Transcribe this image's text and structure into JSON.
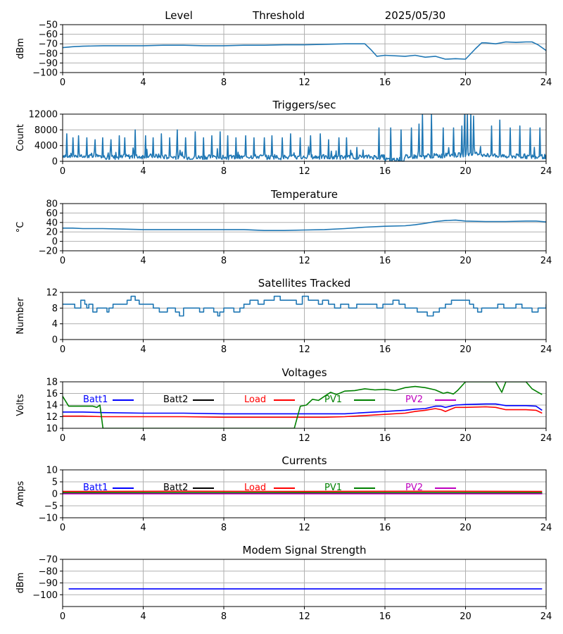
{
  "header": {
    "level": "Level",
    "threshold": "Threshold",
    "date": "2025/05/30"
  },
  "chart_data": [
    {
      "type": "line",
      "title": "",
      "ylabel": "dBm",
      "xlim": [
        0,
        24
      ],
      "ylim": [
        -100,
        -50
      ],
      "xticks": [
        "0",
        "4",
        "8",
        "12",
        "16",
        "20",
        "24"
      ],
      "yticks": [
        "-100",
        "-90",
        "-80",
        "-70",
        "-60",
        "-50"
      ],
      "grid": true,
      "series": [
        {
          "color": "#1f77b4",
          "x": [
            0,
            0.5,
            1,
            2,
            3,
            4,
            5,
            6,
            7,
            8,
            9,
            10,
            11,
            12,
            13,
            14,
            15,
            15.3,
            15.6,
            16,
            17,
            17.5,
            18,
            18.5,
            19,
            19.5,
            20,
            20.5,
            20.8,
            21,
            21.5,
            22,
            22.5,
            23,
            23.3,
            23.6,
            24
          ],
          "y": [
            -74,
            -73,
            -72.5,
            -72,
            -72,
            -72,
            -71.5,
            -71.5,
            -72,
            -72,
            -71.5,
            -71.5,
            -71,
            -71,
            -70.5,
            -70,
            -70,
            -76,
            -83,
            -82,
            -83,
            -82,
            -84,
            -83,
            -86,
            -85.5,
            -86,
            -75,
            -69,
            -69,
            -70,
            -68,
            -68.5,
            -68,
            -68,
            -71,
            -77
          ]
        }
      ]
    },
    {
      "type": "line",
      "title": "Triggers/sec",
      "ylabel": "Count",
      "xlim": [
        0,
        24
      ],
      "ylim": [
        0,
        12000
      ],
      "xticks": [
        "0",
        "4",
        "8",
        "12",
        "16",
        "20",
        "24"
      ],
      "yticks": [
        "0",
        "4000",
        "8000",
        "12000"
      ],
      "grid": true,
      "series": [
        {
          "color": "#1f77b4",
          "baseline": [
            1500,
            1200,
            1000,
            1200,
            1300,
            1100,
            1000,
            1100,
            1000,
            1200,
            1000,
            1000,
            1100,
            1000,
            1100,
            1100,
            400,
            1200,
            1400,
            1600,
            1800,
            1500,
            1300,
            1200,
            1100
          ],
          "spikes": [
            [
              0.2,
              7000
            ],
            [
              0.5,
              6000
            ],
            [
              0.8,
              6500
            ],
            [
              1.2,
              6000
            ],
            [
              1.6,
              5500
            ],
            [
              2.0,
              6000
            ],
            [
              2.4,
              5500
            ],
            [
              2.8,
              6500
            ],
            [
              3.1,
              6000
            ],
            [
              3.6,
              8000
            ],
            [
              4.1,
              6500
            ],
            [
              4.5,
              6000
            ],
            [
              4.9,
              7000
            ],
            [
              5.3,
              6000
            ],
            [
              5.7,
              8000
            ],
            [
              6.1,
              6000
            ],
            [
              6.6,
              7500
            ],
            [
              7.0,
              6000
            ],
            [
              7.4,
              6500
            ],
            [
              7.8,
              7500
            ],
            [
              8.2,
              6500
            ],
            [
              8.6,
              6000
            ],
            [
              9.1,
              6500
            ],
            [
              9.5,
              6000
            ],
            [
              10.0,
              6000
            ],
            [
              10.4,
              6500
            ],
            [
              10.9,
              6000
            ],
            [
              11.3,
              7000
            ],
            [
              11.8,
              6000
            ],
            [
              12.3,
              6500
            ],
            [
              12.8,
              7000
            ],
            [
              13.2,
              5500
            ],
            [
              13.7,
              6000
            ],
            [
              14.1,
              6000
            ],
            [
              15.7,
              8500
            ],
            [
              16.3,
              8500
            ],
            [
              16.8,
              8000
            ],
            [
              17.3,
              8500
            ],
            [
              17.7,
              9500
            ],
            [
              17.85,
              12000
            ],
            [
              18.3,
              12000
            ],
            [
              18.9,
              8500
            ],
            [
              19.4,
              8500
            ],
            [
              19.8,
              9000
            ],
            [
              19.95,
              12000
            ],
            [
              20.1,
              12000
            ],
            [
              20.25,
              12000
            ],
            [
              20.4,
              11500
            ],
            [
              21.3,
              9000
            ],
            [
              21.7,
              10500
            ],
            [
              22.2,
              8500
            ],
            [
              22.7,
              9000
            ],
            [
              23.2,
              8500
            ],
            [
              23.7,
              8500
            ]
          ]
        }
      ]
    },
    {
      "type": "line",
      "title": "Temperature",
      "ylabel": "°C",
      "xlim": [
        0,
        24
      ],
      "ylim": [
        -20,
        80
      ],
      "xticks": [
        "0",
        "4",
        "8",
        "12",
        "16",
        "20",
        "24"
      ],
      "yticks": [
        "-20",
        "0",
        "20",
        "40",
        "60",
        "80"
      ],
      "grid": true,
      "series": [
        {
          "color": "#1f77b4",
          "x": [
            0,
            0.5,
            1,
            2,
            3,
            4,
            5,
            6,
            7,
            8,
            9,
            10,
            11,
            12,
            13,
            14,
            15,
            16,
            17,
            17.5,
            18,
            18.5,
            19,
            19.5,
            20,
            21,
            22,
            23,
            23.5,
            24
          ],
          "y": [
            28,
            28,
            27,
            27,
            26,
            25,
            25,
            25,
            25,
            25,
            25,
            23,
            23,
            24,
            25,
            27,
            30,
            32,
            33,
            35,
            38,
            42,
            44,
            45,
            43,
            42,
            42,
            43,
            43,
            41
          ]
        }
      ]
    },
    {
      "type": "line",
      "title": "Satellites Tracked",
      "ylabel": "Number",
      "xlim": [
        0,
        24
      ],
      "ylim": [
        0,
        12
      ],
      "xticks": [
        "0",
        "4",
        "8",
        "12",
        "16",
        "20",
        "24"
      ],
      "yticks": [
        "0",
        "4",
        "8",
        "12"
      ],
      "grid": true,
      "series": [
        {
          "color": "#1f77b4",
          "step": true,
          "x": [
            0,
            0.5,
            0.6,
            0.9,
            1.1,
            1.2,
            1.3,
            1.5,
            1.7,
            1.8,
            2.0,
            2.2,
            2.3,
            2.5,
            2.8,
            3.0,
            3.2,
            3.4,
            3.6,
            3.8,
            4.0,
            4.5,
            4.8,
            5.2,
            5.4,
            5.6,
            5.8,
            6.0,
            6.3,
            6.6,
            6.8,
            7.0,
            7.5,
            7.7,
            7.8,
            8.0,
            8.2,
            8.5,
            8.8,
            9.0,
            9.3,
            9.5,
            9.7,
            10.0,
            10.5,
            10.8,
            11.2,
            11.6,
            11.9,
            12.2,
            12.5,
            12.7,
            12.9,
            13.2,
            13.5,
            13.8,
            14.2,
            14.6,
            15.0,
            15.3,
            15.6,
            15.9,
            16.1,
            16.4,
            16.7,
            17.0,
            17.3,
            17.6,
            17.9,
            18.1,
            18.4,
            18.7,
            19.0,
            19.3,
            19.6,
            19.9,
            20.2,
            20.4,
            20.6,
            20.8,
            21.1,
            21.4,
            21.6,
            21.9,
            22.2,
            22.5,
            22.8,
            23.0,
            23.3,
            23.6,
            23.9,
            24.0
          ],
          "y": [
            9,
            9,
            8,
            10,
            9,
            8,
            9,
            7,
            8,
            8,
            8,
            7,
            8,
            9,
            9,
            9,
            10,
            11,
            10,
            9,
            9,
            8,
            7,
            8,
            8,
            7,
            6,
            8,
            8,
            8,
            7,
            8,
            7,
            6,
            7,
            8,
            8,
            7,
            8,
            9,
            10,
            10,
            9,
            10,
            11,
            10,
            10,
            9,
            11,
            10,
            10,
            9,
            10,
            9,
            8,
            9,
            8,
            9,
            9,
            9,
            8,
            9,
            9,
            10,
            9,
            8,
            8,
            7,
            7,
            6,
            7,
            8,
            9,
            10,
            10,
            10,
            9,
            8,
            7,
            8,
            8,
            8,
            9,
            8,
            8,
            9,
            8,
            8,
            7,
            8,
            8,
            9
          ]
        }
      ]
    },
    {
      "type": "line",
      "title": "Voltages",
      "ylabel": "Volts",
      "xlim": [
        0,
        24
      ],
      "ylim": [
        10,
        18
      ],
      "xticks": [
        "0",
        "4",
        "8",
        "12",
        "16",
        "20",
        "24"
      ],
      "yticks": [
        "10",
        "12",
        "14",
        "16",
        "18"
      ],
      "grid": true,
      "legend": "top",
      "series": [
        {
          "name": "Batt1",
          "color": "#0000ff",
          "x": [
            0,
            1,
            2,
            4,
            6,
            8,
            10,
            12,
            13,
            14,
            15,
            16,
            17,
            17.5,
            18,
            18.5,
            18.8,
            19,
            19.5,
            20,
            21,
            21.5,
            22,
            23,
            23.5,
            23.8
          ],
          "y": [
            12.8,
            12.8,
            12.7,
            12.6,
            12.6,
            12.5,
            12.5,
            12.5,
            12.5,
            12.5,
            12.7,
            12.9,
            13.1,
            13.3,
            13.4,
            13.8,
            13.8,
            13.6,
            14.0,
            14.1,
            14.2,
            14.2,
            13.9,
            13.9,
            13.8,
            13.1
          ]
        },
        {
          "name": "Batt2",
          "color": "#000000",
          "x": [],
          "y": []
        },
        {
          "name": "Load",
          "color": "#ff0000",
          "x": [
            0,
            1,
            2,
            4,
            6,
            8,
            10,
            12,
            13,
            14,
            15,
            16,
            17,
            17.5,
            18,
            18.5,
            18.8,
            19,
            19.5,
            20,
            21,
            21.5,
            22,
            23,
            23.5,
            23.8
          ],
          "y": [
            12.1,
            12.1,
            12.0,
            12.0,
            12.0,
            11.9,
            11.9,
            11.9,
            11.9,
            12.0,
            12.2,
            12.4,
            12.6,
            12.9,
            13.1,
            13.4,
            13.2,
            12.9,
            13.6,
            13.6,
            13.7,
            13.6,
            13.2,
            13.2,
            13.1,
            12.6
          ]
        },
        {
          "name": "PV1",
          "color": "#008000",
          "x": [
            0,
            0.3,
            1,
            1.5,
            1.7,
            1.85,
            2.0,
            11.5,
            11.8,
            12.1,
            12.4,
            12.7,
            13.0,
            13.3,
            13.6,
            14.0,
            14.5,
            15.0,
            15.5,
            16.0,
            16.5,
            17.0,
            17.5,
            18.0,
            18.5,
            18.9,
            19.1,
            19.4,
            19.6,
            20.0,
            21.5,
            21.8,
            22.0,
            22.5,
            23.0,
            23.3,
            23.6,
            23.8
          ],
          "y": [
            15.5,
            13.8,
            13.8,
            13.8,
            13.6,
            14.0,
            10,
            10,
            13.8,
            14.0,
            15.0,
            14.8,
            15.5,
            16.2,
            15.8,
            16.4,
            16.5,
            16.8,
            16.6,
            16.7,
            16.5,
            17.0,
            17.2,
            17.0,
            16.6,
            16.0,
            16.2,
            15.9,
            16.5,
            18,
            18,
            16.2,
            18,
            18,
            18,
            16.8,
            16.2,
            15.8
          ]
        },
        {
          "name": "PV2",
          "color": "#bf00bf",
          "x": [],
          "y": []
        }
      ]
    },
    {
      "type": "line",
      "title": "Currents",
      "ylabel": "Amps",
      "xlim": [
        0,
        24
      ],
      "ylim": [
        -10,
        10
      ],
      "xticks": [
        "0",
        "4",
        "8",
        "12",
        "16",
        "20",
        "24"
      ],
      "yticks": [
        "-10",
        "-5",
        "0",
        "5",
        "10"
      ],
      "grid": true,
      "legend": "top",
      "series": [
        {
          "name": "Batt1",
          "color": "#0000ff",
          "x": [
            0,
            23.8
          ],
          "y": [
            0.4,
            0.4
          ]
        },
        {
          "name": "Batt2",
          "color": "#000000",
          "x": [
            0,
            23.8
          ],
          "y": [
            0.2,
            0.2
          ]
        },
        {
          "name": "Load",
          "color": "#ff0000",
          "x": [
            0,
            6,
            12,
            18,
            23.8
          ],
          "y": [
            1.0,
            1.1,
            1.0,
            1.1,
            1.0
          ]
        },
        {
          "name": "PV1",
          "color": "#008000",
          "x": [
            0,
            23.8
          ],
          "y": [
            0.5,
            0.5
          ]
        },
        {
          "name": "PV2",
          "color": "#bf00bf",
          "x": [
            0,
            23.8
          ],
          "y": [
            0.0,
            0.0
          ]
        }
      ]
    },
    {
      "type": "line",
      "title": "Modem Signal Strength",
      "ylabel": "dBm",
      "xlim": [
        0,
        24
      ],
      "ylim": [
        -110,
        -70
      ],
      "xticks": [
        "0",
        "4",
        "8",
        "12",
        "16",
        "20",
        "24"
      ],
      "yticks": [
        "-100",
        "-90",
        "-80",
        "-70"
      ],
      "grid": true,
      "series": [
        {
          "color": "#0000ff",
          "x": [
            0.3,
            23.8
          ],
          "y": [
            -95,
            -95
          ]
        }
      ]
    }
  ]
}
